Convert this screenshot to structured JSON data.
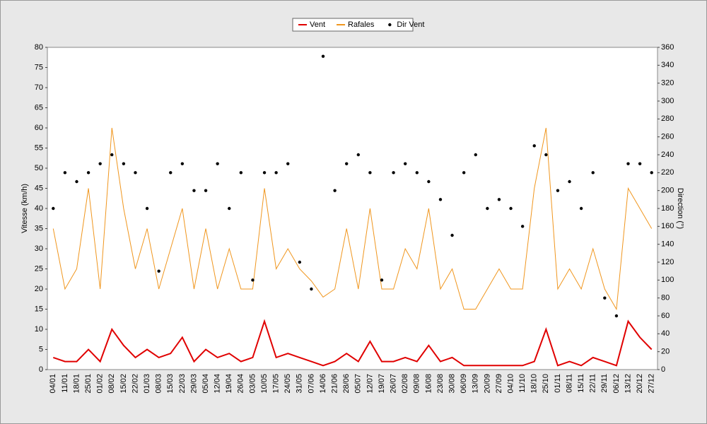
{
  "chart_data": {
    "type": "line",
    "categories": [
      "04/01",
      "11/01",
      "18/01",
      "25/01",
      "01/02",
      "08/02",
      "15/02",
      "22/02",
      "01/03",
      "08/03",
      "15/03",
      "22/03",
      "29/03",
      "05/04",
      "12/04",
      "19/04",
      "26/04",
      "03/05",
      "10/05",
      "17/05",
      "24/05",
      "31/05",
      "07/06",
      "14/06",
      "21/06",
      "28/06",
      "05/07",
      "12/07",
      "19/07",
      "26/07",
      "02/08",
      "09/08",
      "16/08",
      "23/08",
      "30/08",
      "06/09",
      "13/09",
      "20/09",
      "27/09",
      "04/10",
      "11/10",
      "18/10",
      "25/10",
      "01/11",
      "08/11",
      "15/11",
      "22/11",
      "29/11",
      "06/12",
      "13/12",
      "20/12",
      "27/12"
    ],
    "series": [
      {
        "name": "Vent",
        "color": "#e00000",
        "values": [
          3,
          2,
          2,
          5,
          2,
          10,
          6,
          3,
          5,
          3,
          4,
          8,
          2,
          5,
          3,
          4,
          2,
          3,
          12,
          3,
          4,
          3,
          2,
          1,
          2,
          4,
          2,
          7,
          2,
          2,
          3,
          2,
          6,
          2,
          3,
          1,
          1,
          1,
          1,
          1,
          1,
          2,
          10,
          1,
          2,
          1,
          3,
          2,
          1,
          12,
          8,
          5
        ]
      },
      {
        "name": "Rafales",
        "color": "#f0961e",
        "values": [
          35,
          20,
          25,
          45,
          20,
          60,
          40,
          25,
          35,
          20,
          30,
          40,
          20,
          35,
          20,
          30,
          20,
          20,
          45,
          25,
          30,
          25,
          22,
          18,
          20,
          35,
          20,
          40,
          20,
          20,
          30,
          25,
          40,
          20,
          25,
          15,
          15,
          20,
          25,
          20,
          20,
          45,
          60,
          20,
          25,
          20,
          30,
          20,
          15,
          45,
          40,
          35
        ]
      },
      {
        "name": "Dir Vent",
        "color": "#000000",
        "type": "scatter",
        "axis": "y2",
        "values": [
          180,
          220,
          210,
          220,
          230,
          240,
          230,
          220,
          180,
          110,
          220,
          230,
          200,
          200,
          230,
          180,
          220,
          100,
          220,
          220,
          230,
          120,
          90,
          350,
          200,
          230,
          240,
          220,
          100,
          220,
          230,
          220,
          210,
          190,
          150,
          220,
          240,
          180,
          190,
          180,
          160,
          250,
          240,
          200,
          210,
          180,
          220,
          80,
          60,
          230,
          230,
          220
        ]
      }
    ],
    "ylabel": "Vitesse (km/h)",
    "y2label": "Direction (°)",
    "ylim": [
      0,
      80
    ],
    "yticks": [
      0,
      5,
      10,
      15,
      20,
      25,
      30,
      35,
      40,
      45,
      50,
      55,
      60,
      65,
      70,
      75,
      80
    ],
    "y2lim": [
      0,
      360
    ],
    "y2ticks": [
      0,
      20,
      40,
      60,
      80,
      100,
      120,
      140,
      160,
      180,
      200,
      220,
      240,
      260,
      280,
      300,
      320,
      340,
      360
    ],
    "grid": false,
    "legend": "top"
  }
}
